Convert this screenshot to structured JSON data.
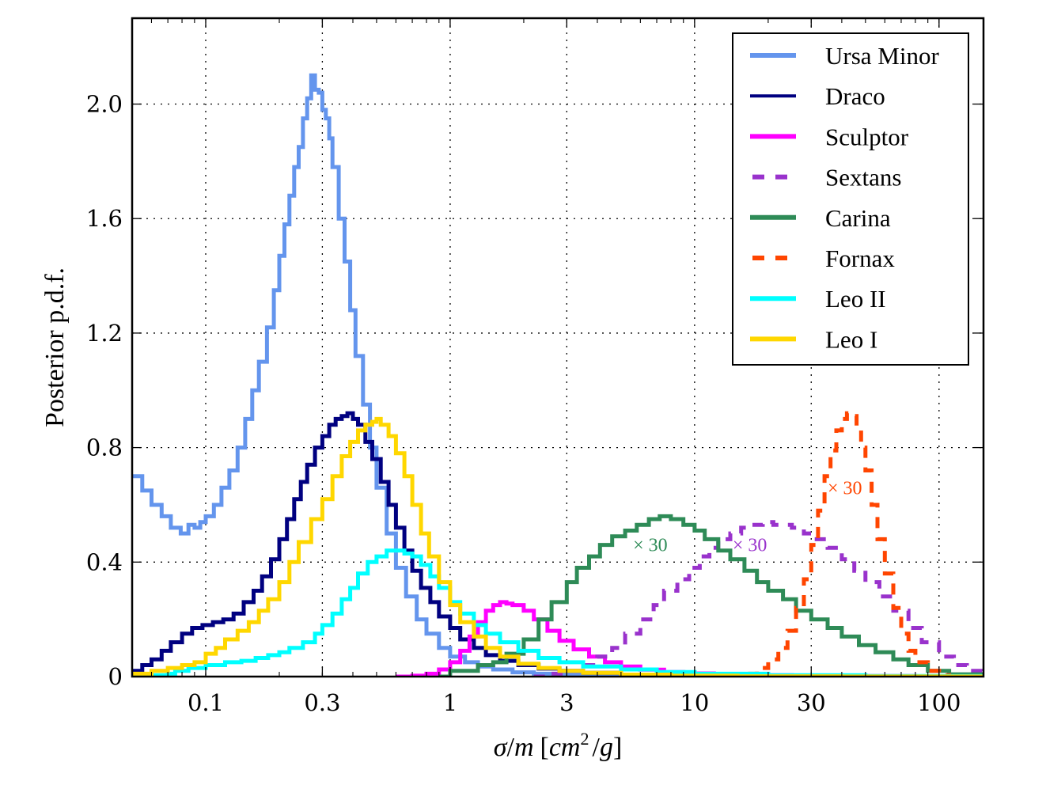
{
  "chart_data": {
    "type": "line",
    "title": "",
    "xlabel": "σ/m [cm²/g]",
    "xlabel_parts": {
      "sigma": "σ",
      "slash": "/",
      "m": "m",
      "bracket_open": "[",
      "cm": "cm",
      "sup": "2",
      "slash2": "/",
      "g": "g",
      "bracket_close": "]"
    },
    "ylabel": "Posterior p.d.f.",
    "xscale": "log",
    "xlim": [
      0.05,
      152
    ],
    "ylim": [
      0,
      2.3
    ],
    "grid": true,
    "legend_position": "top-right",
    "xticks": [
      {
        "value": 0.1,
        "label": "0.1"
      },
      {
        "value": 0.3,
        "label": "0.3"
      },
      {
        "value": 1,
        "label": "1"
      },
      {
        "value": 3,
        "label": "3"
      },
      {
        "value": 10,
        "label": "10"
      },
      {
        "value": 30,
        "label": "30"
      },
      {
        "value": 100,
        "label": "100"
      }
    ],
    "yticks": [
      {
        "value": 0,
        "label": "0"
      },
      {
        "value": 0.4,
        "label": "0.4"
      },
      {
        "value": 0.8,
        "label": "0.8"
      },
      {
        "value": 1.2,
        "label": "1.2"
      },
      {
        "value": 1.6,
        "label": "1.6"
      },
      {
        "value": 2.0,
        "label": "2.0"
      }
    ],
    "series": [
      {
        "name": "Ursa Minor",
        "color": "#6495ed",
        "dashed": false,
        "x": [
          0.05,
          0.055,
          0.06,
          0.066,
          0.072,
          0.079,
          0.085,
          0.09,
          0.095,
          0.1,
          0.108,
          0.116,
          0.125,
          0.135,
          0.145,
          0.155,
          0.165,
          0.178,
          0.19,
          0.2,
          0.21,
          0.22,
          0.23,
          0.24,
          0.25,
          0.26,
          0.27,
          0.28,
          0.29,
          0.3,
          0.31,
          0.32,
          0.33,
          0.35,
          0.37,
          0.39,
          0.41,
          0.44,
          0.47,
          0.5,
          0.55,
          0.6,
          0.66,
          0.73,
          0.8,
          0.9,
          1.0,
          1.15,
          1.3,
          1.5,
          1.8,
          2.2,
          2.7,
          3.5,
          5,
          8,
          15,
          40,
          150
        ],
        "y": [
          0.7,
          0.65,
          0.6,
          0.56,
          0.52,
          0.5,
          0.53,
          0.52,
          0.54,
          0.56,
          0.6,
          0.66,
          0.72,
          0.8,
          0.9,
          1.0,
          1.1,
          1.22,
          1.35,
          1.47,
          1.58,
          1.68,
          1.78,
          1.85,
          1.95,
          2.02,
          2.1,
          2.05,
          2.04,
          1.98,
          1.95,
          1.88,
          1.78,
          1.6,
          1.45,
          1.28,
          1.12,
          0.95,
          0.8,
          0.66,
          0.5,
          0.38,
          0.28,
          0.2,
          0.15,
          0.1,
          0.07,
          0.05,
          0.035,
          0.025,
          0.015,
          0.01,
          0.006,
          0.004,
          0.002,
          0.001,
          0.0005,
          0.0002,
          0
        ]
      },
      {
        "name": "Draco",
        "color": "#000080",
        "dashed": false,
        "x": [
          0.05,
          0.055,
          0.06,
          0.066,
          0.072,
          0.08,
          0.088,
          0.097,
          0.107,
          0.118,
          0.13,
          0.143,
          0.157,
          0.17,
          0.185,
          0.2,
          0.215,
          0.23,
          0.245,
          0.26,
          0.28,
          0.3,
          0.32,
          0.34,
          0.36,
          0.38,
          0.4,
          0.42,
          0.45,
          0.48,
          0.52,
          0.56,
          0.6,
          0.65,
          0.7,
          0.76,
          0.83,
          0.9,
          1.0,
          1.1,
          1.25,
          1.4,
          1.6,
          1.9,
          2.3,
          2.8,
          3.5,
          5,
          8,
          15,
          40,
          150
        ],
        "y": [
          0.02,
          0.04,
          0.06,
          0.09,
          0.12,
          0.15,
          0.17,
          0.18,
          0.19,
          0.2,
          0.22,
          0.26,
          0.3,
          0.35,
          0.41,
          0.48,
          0.55,
          0.62,
          0.68,
          0.74,
          0.8,
          0.84,
          0.88,
          0.9,
          0.91,
          0.92,
          0.9,
          0.88,
          0.82,
          0.76,
          0.68,
          0.6,
          0.52,
          0.44,
          0.37,
          0.31,
          0.26,
          0.21,
          0.17,
          0.13,
          0.1,
          0.075,
          0.055,
          0.04,
          0.028,
          0.02,
          0.013,
          0.007,
          0.003,
          0.001,
          0.0003,
          0
        ]
      },
      {
        "name": "Sculptor",
        "color": "#ff00ff",
        "dashed": false,
        "x": [
          0.6,
          0.7,
          0.8,
          0.9,
          1.0,
          1.1,
          1.2,
          1.3,
          1.4,
          1.5,
          1.6,
          1.7,
          1.8,
          2.0,
          2.2,
          2.5,
          2.8,
          3.2,
          3.7,
          4.3,
          5,
          6,
          7.5,
          9,
          12,
          16,
          25,
          40,
          80,
          150
        ],
        "y": [
          0,
          0.003,
          0.01,
          0.025,
          0.05,
          0.09,
          0.14,
          0.19,
          0.23,
          0.25,
          0.26,
          0.255,
          0.25,
          0.23,
          0.2,
          0.16,
          0.125,
          0.095,
          0.07,
          0.05,
          0.035,
          0.024,
          0.016,
          0.011,
          0.007,
          0.005,
          0.003,
          0.002,
          0.001,
          0
        ]
      },
      {
        "name": "Sextans",
        "color": "#9932cc",
        "dashed": true,
        "x": [
          2.2,
          2.6,
          3.0,
          3.5,
          4.0,
          4.6,
          5.2,
          6.0,
          6.8,
          7.5,
          8.5,
          9.5,
          10.5,
          11.5,
          12.5,
          14,
          15.5,
          17,
          19,
          21,
          23,
          25,
          28,
          31,
          35,
          40,
          45,
          50,
          57,
          65,
          75,
          85,
          100,
          115,
          130,
          150
        ],
        "y": [
          0.0,
          0.01,
          0.02,
          0.04,
          0.07,
          0.1,
          0.15,
          0.2,
          0.25,
          0.3,
          0.34,
          0.38,
          0.42,
          0.45,
          0.48,
          0.5,
          0.52,
          0.53,
          0.54,
          0.53,
          0.53,
          0.52,
          0.5,
          0.48,
          0.45,
          0.41,
          0.37,
          0.33,
          0.28,
          0.23,
          0.17,
          0.12,
          0.07,
          0.04,
          0.02,
          0.005
        ]
      },
      {
        "name": "Carina",
        "color": "#2e8b57",
        "dashed": false,
        "x": [
          0.9,
          1.0,
          1.1,
          1.3,
          1.5,
          1.7,
          2.0,
          2.3,
          2.6,
          3.0,
          3.3,
          3.7,
          4.1,
          4.6,
          5.2,
          5.8,
          6.5,
          7.2,
          8.0,
          9.0,
          10,
          11,
          12.5,
          14,
          16,
          18,
          20,
          23,
          26,
          30,
          35,
          40,
          47,
          55,
          65,
          75,
          90,
          110,
          150
        ],
        "y": [
          0,
          0.02,
          0.02,
          0.04,
          0.05,
          0.08,
          0.13,
          0.2,
          0.26,
          0.33,
          0.38,
          0.42,
          0.46,
          0.49,
          0.51,
          0.53,
          0.55,
          0.56,
          0.55,
          0.53,
          0.51,
          0.48,
          0.44,
          0.41,
          0.37,
          0.33,
          0.3,
          0.27,
          0.23,
          0.2,
          0.17,
          0.14,
          0.11,
          0.085,
          0.06,
          0.04,
          0.02,
          0.008,
          0.002
        ]
      },
      {
        "name": "Fornax",
        "color": "#ff4500",
        "dashed": true,
        "x": [
          14,
          16,
          18,
          20,
          22,
          24,
          26,
          28,
          30,
          32,
          34,
          36,
          38,
          40,
          42,
          44,
          46,
          48,
          50,
          53,
          56,
          60,
          65,
          70,
          75,
          80,
          90,
          100,
          110
        ],
        "y": [
          0.0,
          0.01,
          0.03,
          0.06,
          0.1,
          0.16,
          0.24,
          0.34,
          0.46,
          0.58,
          0.7,
          0.79,
          0.86,
          0.9,
          0.92,
          0.91,
          0.87,
          0.8,
          0.72,
          0.6,
          0.48,
          0.36,
          0.24,
          0.15,
          0.09,
          0.05,
          0.02,
          0.005,
          0
        ]
      },
      {
        "name": "Leo II",
        "color": "#00ffff",
        "dashed": false,
        "x": [
          0.05,
          0.06,
          0.07,
          0.075,
          0.085,
          0.1,
          0.12,
          0.14,
          0.16,
          0.18,
          0.2,
          0.22,
          0.25,
          0.28,
          0.3,
          0.33,
          0.36,
          0.39,
          0.42,
          0.46,
          0.5,
          0.55,
          0.6,
          0.65,
          0.7,
          0.76,
          0.83,
          0.9,
          1.0,
          1.1,
          1.25,
          1.4,
          1.6,
          1.9,
          2.3,
          2.8,
          3.5,
          5,
          7,
          10,
          20,
          50,
          150
        ],
        "y": [
          0.0,
          0.005,
          0.01,
          0.02,
          0.03,
          0.04,
          0.05,
          0.055,
          0.065,
          0.075,
          0.085,
          0.1,
          0.12,
          0.15,
          0.18,
          0.22,
          0.27,
          0.31,
          0.36,
          0.4,
          0.42,
          0.44,
          0.44,
          0.43,
          0.42,
          0.39,
          0.35,
          0.31,
          0.26,
          0.22,
          0.18,
          0.15,
          0.12,
          0.09,
          0.065,
          0.05,
          0.035,
          0.025,
          0.016,
          0.01,
          0.005,
          0.002,
          0
        ]
      },
      {
        "name": "Leo I",
        "color": "#ffd700",
        "dashed": false,
        "x": [
          0.05,
          0.06,
          0.07,
          0.08,
          0.09,
          0.1,
          0.11,
          0.12,
          0.135,
          0.15,
          0.165,
          0.18,
          0.2,
          0.22,
          0.24,
          0.27,
          0.3,
          0.33,
          0.36,
          0.39,
          0.42,
          0.45,
          0.48,
          0.5,
          0.52,
          0.56,
          0.6,
          0.65,
          0.7,
          0.76,
          0.82,
          0.9,
          1.0,
          1.1,
          1.25,
          1.4,
          1.6,
          1.9,
          2.3,
          2.8,
          3.5,
          5,
          8,
          15,
          40,
          150
        ],
        "y": [
          0.01,
          0.02,
          0.03,
          0.04,
          0.05,
          0.08,
          0.1,
          0.13,
          0.16,
          0.19,
          0.23,
          0.27,
          0.33,
          0.4,
          0.47,
          0.55,
          0.62,
          0.7,
          0.77,
          0.82,
          0.86,
          0.88,
          0.89,
          0.9,
          0.88,
          0.84,
          0.78,
          0.7,
          0.6,
          0.5,
          0.42,
          0.33,
          0.25,
          0.19,
          0.14,
          0.1,
          0.07,
          0.045,
          0.03,
          0.02,
          0.013,
          0.007,
          0.003,
          0.001,
          0.0003,
          0
        ]
      }
    ],
    "annotations": [
      {
        "text": "× 30",
        "series": "Carina",
        "color": "#2e8b57",
        "x": 5.6,
        "y": 0.46
      },
      {
        "text": "× 30",
        "series": "Sextans",
        "color": "#9932cc",
        "x": 14.3,
        "y": 0.46
      },
      {
        "text": "× 30",
        "series": "Fornax",
        "color": "#ff4500",
        "x": 35,
        "y": 0.66
      }
    ]
  }
}
